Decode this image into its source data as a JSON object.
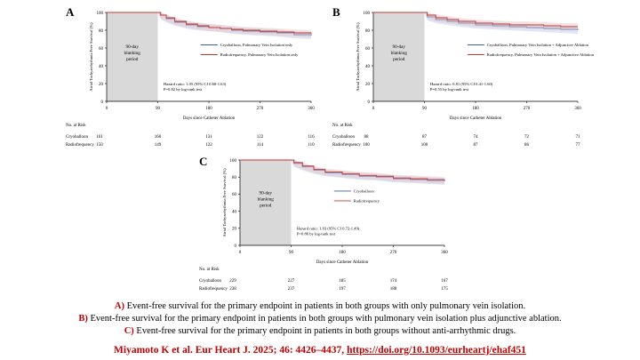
{
  "chart_data": [
    {
      "type": "line",
      "panel_letter": "A",
      "ylabel": "Atrial Tachyarrhythmia Free Survival (%)",
      "xlabel": "Days since Catheter Ablation",
      "ylim": [
        0,
        100
      ],
      "yticks": [
        "0",
        "20",
        "40",
        "60",
        "80",
        "100"
      ],
      "xlim": [
        0,
        360
      ],
      "xticks": [
        "0",
        "90",
        "180",
        "270",
        "360"
      ],
      "blanking_label": [
        "90-day",
        "blanking",
        "period"
      ],
      "blanking_range": [
        0,
        90
      ],
      "series": [
        {
          "name": "Cryoballoon, Pulmonary Vein Isolation only",
          "color": "#3a5fa8",
          "x": [
            0,
            90,
            95,
            105,
            120,
            140,
            160,
            180,
            200,
            220,
            240,
            270,
            300,
            330,
            360
          ],
          "y": [
            100,
            100,
            97,
            93,
            89,
            86,
            84,
            83,
            82,
            80,
            79,
            78,
            77,
            75,
            74
          ]
        },
        {
          "name": "Radiofrequency, Pulmonary Vein Isolation only",
          "color": "#c0392b",
          "x": [
            0,
            90,
            95,
            105,
            120,
            140,
            160,
            180,
            200,
            220,
            240,
            270,
            300,
            330,
            360
          ],
          "y": [
            100,
            100,
            97,
            94,
            90,
            87,
            85,
            83,
            82,
            81,
            80,
            79,
            78,
            77,
            76
          ]
        }
      ],
      "annotation": [
        "Hazard ratio: 1.05 (95% CI 0.68-1.63)",
        "P=0.82 by log-rank test"
      ],
      "risk_table": {
        "title": "No. at Risk",
        "rows": [
          {
            "label": "Cryoballoon",
            "values": [
              "161",
              "160",
              "131",
              "122",
              "116"
            ]
          },
          {
            "label": "Radiofrequency",
            "values": [
              "150",
              "149",
              "122",
              "114",
              "110"
            ]
          }
        ]
      }
    },
    {
      "type": "line",
      "panel_letter": "B",
      "ylabel": "Atrial Tachyarrhythmia Free Survival (%)",
      "xlabel": "Days since Catheter Ablation",
      "ylim": [
        0,
        100
      ],
      "yticks": [
        "0",
        "20",
        "40",
        "60",
        "80",
        "100"
      ],
      "xlim": [
        0,
        360
      ],
      "xticks": [
        "0",
        "90",
        "180",
        "270",
        "360"
      ],
      "blanking_label": [
        "90-day",
        "blanking",
        "period"
      ],
      "blanking_range": [
        0,
        90
      ],
      "series": [
        {
          "name": "Cryoballoon, Pulmonary Vein Isolation + Adjunctive Ablation",
          "color": "#3a5fa8",
          "x": [
            0,
            90,
            95,
            110,
            130,
            150,
            180,
            210,
            240,
            270,
            300,
            330,
            360
          ],
          "y": [
            100,
            100,
            95,
            92,
            90,
            88,
            86,
            85,
            84,
            83,
            82,
            81,
            80
          ]
        },
        {
          "name": "Radiofrequency, Pulmonary Vein Isolation + Adjunctive Ablation",
          "color": "#c0392b",
          "x": [
            0,
            90,
            95,
            110,
            130,
            150,
            180,
            210,
            240,
            270,
            300,
            330,
            360
          ],
          "y": [
            100,
            100,
            97,
            94,
            92,
            90,
            88,
            87,
            86,
            86,
            85,
            84,
            84
          ]
        }
      ],
      "annotation": [
        "Hazard ratio: 0.81 (95% CI 0.41-1.60)",
        "P=0.55 by log-rank test"
      ],
      "risk_table": {
        "title": "No. at Risk",
        "rows": [
          {
            "label": "Cryoballoon",
            "values": [
              "88",
              "87",
              "74",
              "72",
              "71"
            ]
          },
          {
            "label": "Radiofrequency",
            "values": [
              "100",
              "100",
              "87",
              "86",
              "77"
            ]
          }
        ]
      }
    },
    {
      "type": "line",
      "panel_letter": "C",
      "ylabel": "Atrial Tachyarrhythmia Free Survival (%)",
      "xlabel": "Days since Catheter Ablation",
      "ylim": [
        0,
        100
      ],
      "yticks": [
        "0",
        "20",
        "40",
        "60",
        "80",
        "100"
      ],
      "xlim": [
        0,
        360
      ],
      "xticks": [
        "0",
        "90",
        "180",
        "270",
        "360"
      ],
      "blanking_label": [
        "90-day",
        "blanking",
        "period"
      ],
      "blanking_range": [
        0,
        90
      ],
      "series": [
        {
          "name": "Cryoballoon",
          "color": "#3a5fa8",
          "x": [
            0,
            90,
            95,
            110,
            130,
            150,
            180,
            210,
            240,
            270,
            300,
            330,
            360
          ],
          "y": [
            100,
            100,
            96,
            92,
            88,
            85,
            83,
            81,
            80,
            78,
            77,
            76,
            75
          ]
        },
        {
          "name": "Radiofrequency",
          "color": "#c0392b",
          "x": [
            0,
            90,
            95,
            110,
            130,
            150,
            180,
            210,
            240,
            270,
            300,
            330,
            360
          ],
          "y": [
            100,
            100,
            97,
            93,
            89,
            86,
            84,
            82,
            81,
            79,
            78,
            77,
            76
          ]
        }
      ],
      "annotation": [
        "Hazard ratio: 1.03 (95% CI 0.72-1.49)",
        "P=0.86 by log-rank test"
      ],
      "risk_table": {
        "title": "No. at Risk",
        "rows": [
          {
            "label": "Cryoballoon",
            "values": [
              "229",
              "227",
              "185",
              "174",
              "167"
            ]
          },
          {
            "label": "Radiofrequency",
            "values": [
              "238",
              "237",
              "197",
              "188",
              "175"
            ]
          }
        ]
      }
    }
  ],
  "captions": [
    {
      "label": "A)",
      "text": "Event-free survival for the primary endpoint in patients in both groups with only pulmonary vein isolation."
    },
    {
      "label": "B)",
      "text": "Event-free survival for the primary endpoint in patients in both groups with pulmonary vein isolation plus adjunctive ablation."
    },
    {
      "label": "C)",
      "text": "Event-free survival for the primary endpoint in patients in both groups without anti-arrhythmic drugs."
    }
  ],
  "citation": {
    "text": "Miyamoto K et al. Eur Heart J. 2025; 46: 4426–4437, ",
    "link": "https://doi.org/10.1093/eurheartj/ehaf451"
  },
  "colors": {
    "cryo": "#3a5fa8",
    "rf": "#c0392b",
    "band": "#d9c8d8",
    "blanking": "#d9d9d9",
    "accent": "#c00000"
  }
}
